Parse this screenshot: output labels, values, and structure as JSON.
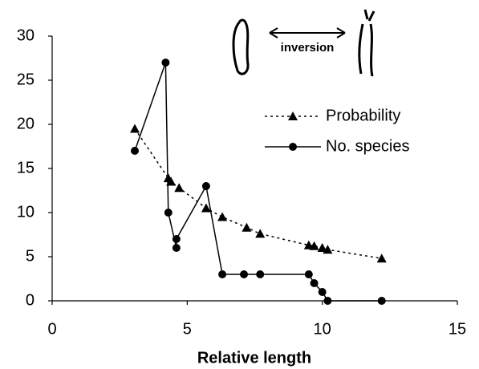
{
  "chart_data": {
    "type": "line",
    "x_label": "Relative length",
    "annotation": "inversion",
    "xlim": [
      0,
      15
    ],
    "xticks": [
      0,
      5,
      10,
      15
    ],
    "ylim": [
      0,
      30
    ],
    "yticks": [
      0,
      5,
      10,
      15,
      20,
      25,
      30
    ],
    "legend": "upper right",
    "series": [
      {
        "name": "Probability",
        "color": "#000000",
        "style": "dotted",
        "marker": "triangle",
        "x": [
          3.06,
          4.3,
          4.4,
          4.7,
          5.7,
          6.3,
          7.2,
          7.7,
          9.5,
          9.7,
          10.0,
          10.2,
          12.2
        ],
        "values": [
          19.5,
          13.9,
          13.5,
          12.8,
          10.5,
          9.5,
          8.3,
          7.6,
          6.3,
          6.2,
          6.0,
          5.8,
          4.8
        ]
      },
      {
        "name": "No. species",
        "color": "#000000",
        "style": "solid",
        "marker": "circle",
        "x": [
          3.06,
          4.2,
          4.3,
          4.6,
          4.6,
          5.7,
          6.3,
          7.1,
          7.7,
          9.5,
          9.7,
          10.0,
          10.2,
          12.2
        ],
        "values": [
          17,
          27,
          10,
          6,
          7,
          13,
          3,
          3,
          3,
          3,
          2,
          1,
          0,
          0
        ]
      }
    ]
  }
}
